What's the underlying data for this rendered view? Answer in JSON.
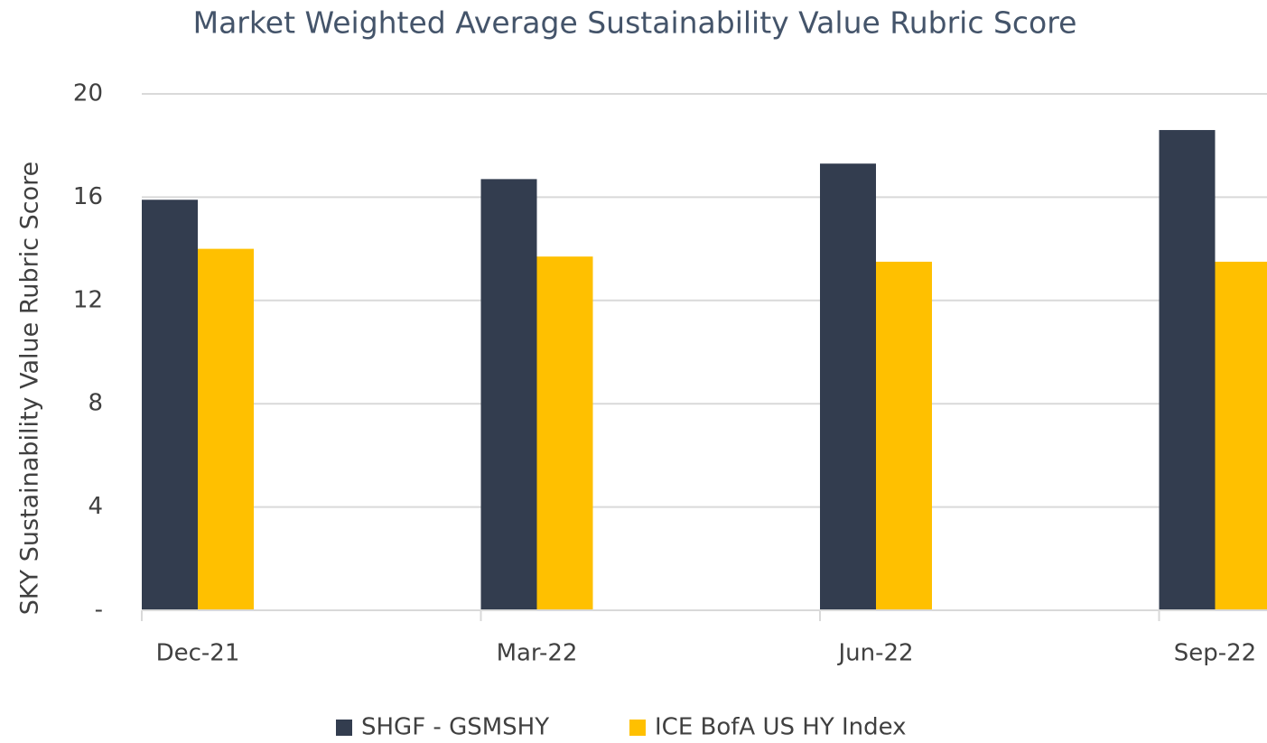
{
  "chart_data": {
    "type": "bar",
    "title": "Market Weighted Average Sustainability Value Rubric Score",
    "y_label": "SKY Sustainability Value Rubric Score",
    "categories": [
      "Dec-21",
      "Mar-22",
      "Jun-22",
      "Sep-22"
    ],
    "series": [
      {
        "name": "SHGF - GSMSHY",
        "color": "#333d4f",
        "values": [
          15.9,
          16.7,
          17.3,
          18.6
        ]
      },
      {
        "name": "ICE BofA US HY Index",
        "color": "#ffc000",
        "values": [
          14.0,
          13.7,
          13.5,
          13.5
        ]
      }
    ],
    "ylim": [
      0,
      20
    ],
    "yticks": [
      {
        "value": 0,
        "label": "-"
      },
      4,
      8,
      12,
      16,
      20
    ],
    "grid": true,
    "legend": "bottom"
  }
}
